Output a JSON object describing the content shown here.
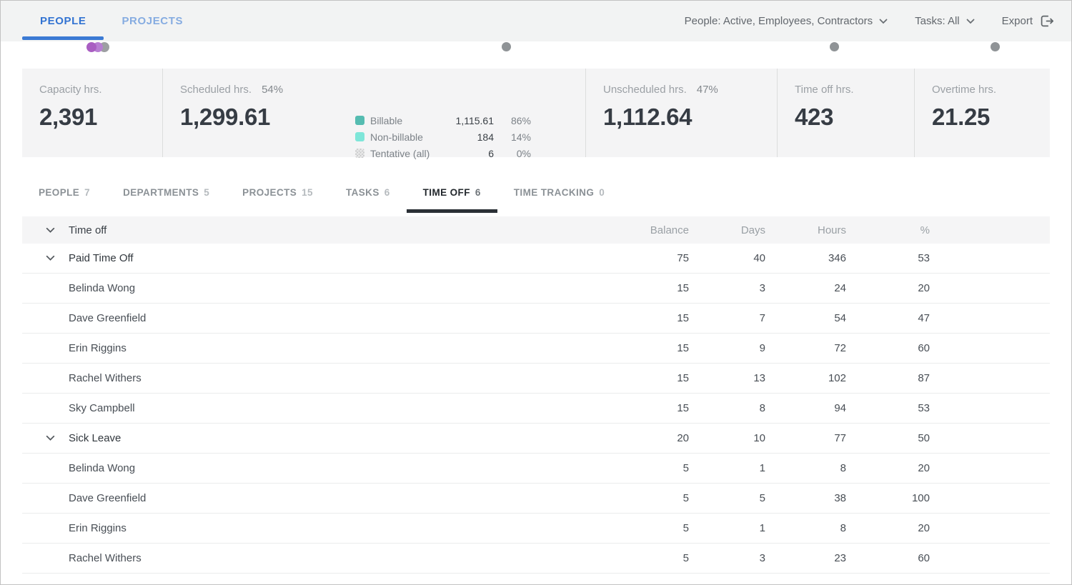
{
  "topbar": {
    "tabs": [
      {
        "label": "PEOPLE"
      },
      {
        "label": "PROJECTS"
      }
    ],
    "people_filter": "People: Active, Employees, Contractors",
    "tasks_filter": "Tasks: All",
    "export_label": "Export"
  },
  "timeline": {
    "cluster_colors": [
      "#a95ec2",
      "#b77ed2",
      "#9d9fa2"
    ],
    "milestone_color": "#8f9396"
  },
  "summary": {
    "capacity": {
      "label": "Capacity hrs.",
      "value": "2,391"
    },
    "scheduled": {
      "label": "Scheduled hrs.",
      "pct": "54%",
      "value": "1,299.61"
    },
    "unscheduled": {
      "label": "Unscheduled hrs.",
      "pct": "47%",
      "value": "1,112.64"
    },
    "timeoff": {
      "label": "Time off hrs.",
      "value": "423"
    },
    "overtime": {
      "label": "Overtime hrs.",
      "value": "21.25"
    },
    "legend": [
      {
        "name": "Billable",
        "value": "1,115.61",
        "pct": "86%",
        "color": "#55bcb1"
      },
      {
        "name": "Non-billable",
        "value": "184",
        "pct": "14%",
        "color": "#7ee6d9"
      },
      {
        "name": "Tentative (all)",
        "value": "6",
        "pct": "0%",
        "color": "checker"
      }
    ]
  },
  "report_tabs": [
    {
      "label": "PEOPLE",
      "count": "7"
    },
    {
      "label": "DEPARTMENTS",
      "count": "5"
    },
    {
      "label": "PROJECTS",
      "count": "15"
    },
    {
      "label": "TASKS",
      "count": "6"
    },
    {
      "label": "TIME OFF",
      "count": "6"
    },
    {
      "label": "TIME TRACKING",
      "count": "0"
    }
  ],
  "table": {
    "title": "Time off",
    "columns": {
      "balance": "Balance",
      "days": "Days",
      "hours": "Hours",
      "pct": "%"
    },
    "rows": [
      {
        "name": "Paid Time Off",
        "balance": "75",
        "days": "40",
        "hours": "346",
        "pct": "53",
        "bar": 53,
        "group": true
      },
      {
        "name": "Belinda Wong",
        "balance": "15",
        "days": "3",
        "hours": "24",
        "pct": "20"
      },
      {
        "name": "Dave Greenfield",
        "balance": "15",
        "days": "7",
        "hours": "54",
        "pct": "47"
      },
      {
        "name": "Erin Riggins",
        "balance": "15",
        "days": "9",
        "hours": "72",
        "pct": "60"
      },
      {
        "name": "Rachel Withers",
        "balance": "15",
        "days": "13",
        "hours": "102",
        "pct": "87"
      },
      {
        "name": "Sky Campbell",
        "balance": "15",
        "days": "8",
        "hours": "94",
        "pct": "53"
      },
      {
        "name": "Sick Leave",
        "balance": "20",
        "days": "10",
        "hours": "77",
        "pct": "50",
        "bar": 50,
        "group": true
      },
      {
        "name": "Belinda Wong",
        "balance": "5",
        "days": "1",
        "hours": "8",
        "pct": "20"
      },
      {
        "name": "Dave Greenfield",
        "balance": "5",
        "days": "5",
        "hours": "38",
        "pct": "100"
      },
      {
        "name": "Erin Riggins",
        "balance": "5",
        "days": "1",
        "hours": "8",
        "pct": "20"
      },
      {
        "name": "Rachel Withers",
        "balance": "5",
        "days": "3",
        "hours": "23",
        "pct": "60"
      }
    ]
  },
  "colors": {
    "accent_blue": "#3b7ad4",
    "bar_fill": "#72c8bc",
    "bar_track": "#e2e2e3"
  }
}
